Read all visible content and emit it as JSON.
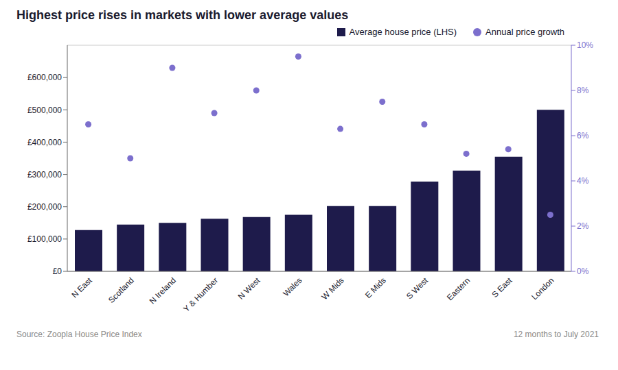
{
  "chart_data": {
    "type": "bar",
    "title": "Highest price rises in markets with lower average values",
    "categories": [
      "N East",
      "Scotland",
      "N Ireland",
      "Y & Humber",
      "N West",
      "Wales",
      "W Mids",
      "E Mids",
      "S West",
      "Eastern",
      "S East",
      "London"
    ],
    "series": [
      {
        "name": "Average house price (LHS)",
        "type": "bar",
        "color": "#1e1b4b",
        "values": [
          128000,
          145000,
          150000,
          163000,
          168000,
          175000,
          202000,
          202000,
          278000,
          312000,
          355000,
          500000
        ]
      },
      {
        "name": "Annual price growth",
        "type": "scatter",
        "axis": "y2",
        "color": "#7c6fcd",
        "values": [
          6.5,
          5.0,
          9.0,
          7.0,
          8.0,
          9.5,
          6.3,
          7.5,
          6.5,
          5.2,
          5.4,
          2.5
        ]
      }
    ],
    "ylim": [
      0,
      700000
    ],
    "yticks": [
      {
        "value": 0,
        "label": "£0"
      },
      {
        "value": 100000,
        "label": "£100,000"
      },
      {
        "value": 200000,
        "label": "£200,000"
      },
      {
        "value": 300000,
        "label": "£300,000"
      },
      {
        "value": 400000,
        "label": "£400,000"
      },
      {
        "value": 500000,
        "label": "£500,000"
      },
      {
        "value": 600000,
        "label": "£600,000"
      }
    ],
    "y2lim": [
      0,
      10
    ],
    "y2ticks": [
      {
        "value": 0,
        "label": "0%"
      },
      {
        "value": 2,
        "label": "2%"
      },
      {
        "value": 4,
        "label": "4%"
      },
      {
        "value": 6,
        "label": "6%"
      },
      {
        "value": 8,
        "label": "8%"
      },
      {
        "value": 10,
        "label": "10%"
      }
    ],
    "grid": true,
    "legend": "upper right",
    "annotations": [
      "Source: Zoopla House Price Index",
      "12 months to July 2021"
    ]
  }
}
